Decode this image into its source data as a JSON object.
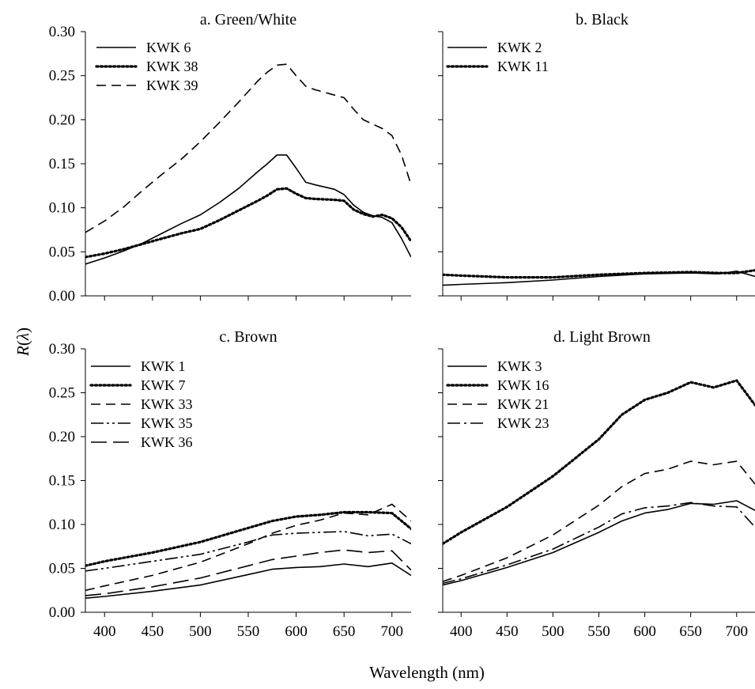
{
  "figure": {
    "ylabel": "R(λ)",
    "xlabel": "Wavelength (nm)",
    "xlim": [
      380,
      720
    ],
    "ylim": [
      0,
      0.3
    ],
    "xticks": [
      "400",
      "450",
      "500",
      "550",
      "600",
      "650",
      "700"
    ],
    "yticks": [
      "0.00",
      "0.05",
      "0.10",
      "0.15",
      "0.20",
      "0.25",
      "0.30"
    ]
  },
  "chart_data": [
    {
      "type": "line",
      "title": "a. Green/White",
      "xlim": [
        380,
        720
      ],
      "ylim": [
        0,
        0.3
      ],
      "legend_position": "top-left",
      "x": [
        380,
        400,
        420,
        440,
        460,
        480,
        500,
        520,
        540,
        560,
        570,
        580,
        590,
        600,
        610,
        620,
        640,
        650,
        660,
        670,
        680,
        690,
        700,
        710,
        720
      ],
      "series": [
        {
          "name": "KWK 6",
          "style": "solid",
          "values": [
            0.036,
            0.043,
            0.051,
            0.06,
            0.071,
            0.082,
            0.092,
            0.106,
            0.122,
            0.141,
            0.15,
            0.16,
            0.16,
            0.145,
            0.129,
            0.126,
            0.121,
            0.115,
            0.103,
            0.095,
            0.091,
            0.089,
            0.083,
            0.065,
            0.044
          ]
        },
        {
          "name": "KWK 38",
          "style": "dotted",
          "values": [
            0.044,
            0.048,
            0.053,
            0.059,
            0.065,
            0.071,
            0.076,
            0.086,
            0.097,
            0.108,
            0.114,
            0.121,
            0.122,
            0.116,
            0.111,
            0.11,
            0.109,
            0.108,
            0.098,
            0.093,
            0.09,
            0.092,
            0.088,
            0.078,
            0.062
          ]
        },
        {
          "name": "KWK 39",
          "style": "dashed",
          "values": [
            0.072,
            0.085,
            0.101,
            0.12,
            0.138,
            0.155,
            0.175,
            0.197,
            0.22,
            0.244,
            0.254,
            0.262,
            0.263,
            0.25,
            0.238,
            0.234,
            0.228,
            0.225,
            0.212,
            0.2,
            0.195,
            0.19,
            0.182,
            0.16,
            0.126
          ]
        }
      ]
    },
    {
      "type": "line",
      "title": "b. Black",
      "xlim": [
        380,
        720
      ],
      "ylim": [
        0,
        0.3
      ],
      "legend_position": "top-left",
      "x": [
        380,
        400,
        450,
        500,
        550,
        600,
        650,
        680,
        700,
        720
      ],
      "series": [
        {
          "name": "KWK 2",
          "style": "solid",
          "values": [
            0.012,
            0.013,
            0.015,
            0.018,
            0.022,
            0.025,
            0.026,
            0.025,
            0.028,
            0.022
          ]
        },
        {
          "name": "KWK 11",
          "style": "dotted",
          "values": [
            0.024,
            0.023,
            0.021,
            0.021,
            0.024,
            0.026,
            0.027,
            0.026,
            0.026,
            0.029
          ]
        }
      ]
    },
    {
      "type": "line",
      "title": "c. Brown",
      "xlim": [
        380,
        720
      ],
      "ylim": [
        0,
        0.3
      ],
      "legend_position": "top-left",
      "x": [
        380,
        400,
        450,
        500,
        550,
        575,
        600,
        625,
        650,
        675,
        700,
        720
      ],
      "series": [
        {
          "name": "KWK 1",
          "style": "solid",
          "values": [
            0.016,
            0.018,
            0.024,
            0.031,
            0.043,
            0.049,
            0.051,
            0.052,
            0.055,
            0.052,
            0.056,
            0.042
          ]
        },
        {
          "name": "KWK 7",
          "style": "dotted",
          "values": [
            0.053,
            0.058,
            0.068,
            0.08,
            0.096,
            0.104,
            0.109,
            0.111,
            0.114,
            0.114,
            0.113,
            0.095
          ]
        },
        {
          "name": "KWK 33",
          "style": "dashed",
          "values": [
            0.025,
            0.03,
            0.042,
            0.057,
            0.078,
            0.09,
            0.099,
            0.105,
            0.113,
            0.111,
            0.123,
            0.104
          ]
        },
        {
          "name": "KWK 35",
          "style": "dash-dot-dot",
          "values": [
            0.047,
            0.05,
            0.058,
            0.066,
            0.08,
            0.088,
            0.09,
            0.091,
            0.092,
            0.087,
            0.089,
            0.078
          ]
        },
        {
          "name": "KWK 36",
          "style": "long-dash",
          "values": [
            0.019,
            0.021,
            0.029,
            0.039,
            0.053,
            0.06,
            0.064,
            0.068,
            0.071,
            0.068,
            0.07,
            0.048
          ]
        }
      ]
    },
    {
      "type": "line",
      "title": "d. Light Brown",
      "xlim": [
        380,
        720
      ],
      "ylim": [
        0,
        0.3
      ],
      "legend_position": "top-left",
      "x": [
        380,
        400,
        450,
        500,
        550,
        575,
        600,
        625,
        650,
        675,
        700,
        720
      ],
      "series": [
        {
          "name": "KWK 3",
          "style": "solid",
          "values": [
            0.031,
            0.036,
            0.051,
            0.068,
            0.091,
            0.104,
            0.113,
            0.117,
            0.124,
            0.123,
            0.127,
            0.116
          ]
        },
        {
          "name": "KWK 16",
          "style": "dotted",
          "values": [
            0.078,
            0.091,
            0.12,
            0.155,
            0.197,
            0.225,
            0.242,
            0.25,
            0.262,
            0.256,
            0.264,
            0.236
          ]
        },
        {
          "name": "KWK 21",
          "style": "dashed",
          "values": [
            0.035,
            0.042,
            0.062,
            0.088,
            0.122,
            0.143,
            0.158,
            0.163,
            0.172,
            0.168,
            0.172,
            0.146
          ]
        },
        {
          "name": "KWK 23",
          "style": "dash-dot",
          "values": [
            0.033,
            0.038,
            0.054,
            0.072,
            0.097,
            0.112,
            0.119,
            0.121,
            0.125,
            0.121,
            0.12,
            0.097
          ]
        }
      ]
    }
  ]
}
